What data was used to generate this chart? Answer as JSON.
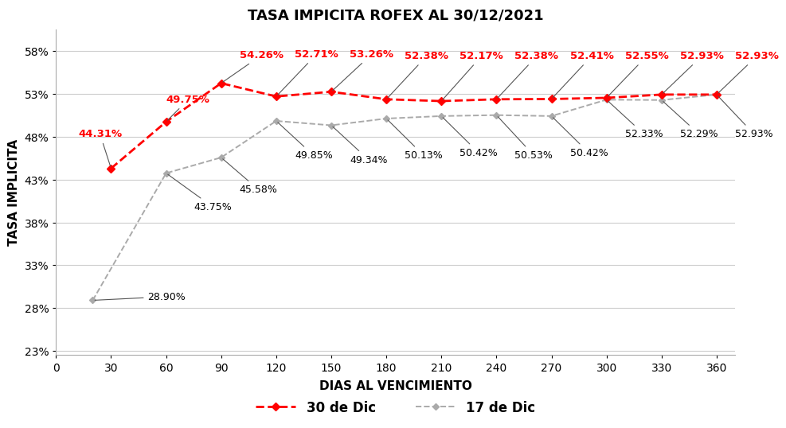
{
  "title": "TASA IMPICITA ROFEX AL 30/12/2021",
  "xlabel": "DIAS AL VENCIMIENTO",
  "ylabel": "TASA IMPLICITA",
  "xlim": [
    0,
    370
  ],
  "ylim": [
    0.225,
    0.605
  ],
  "yticks": [
    0.23,
    0.28,
    0.33,
    0.38,
    0.43,
    0.48,
    0.53,
    0.58
  ],
  "ytick_labels": [
    "23%",
    "28%",
    "33%",
    "38%",
    "43%",
    "48%",
    "53%",
    "58%"
  ],
  "xticks": [
    0,
    30,
    60,
    90,
    120,
    150,
    180,
    210,
    240,
    270,
    300,
    330,
    360
  ],
  "series_30dic": {
    "x": [
      30,
      60,
      90,
      120,
      150,
      180,
      210,
      240,
      270,
      300,
      330,
      360
    ],
    "y": [
      0.4431,
      0.4975,
      0.5426,
      0.5271,
      0.5326,
      0.5238,
      0.5217,
      0.5238,
      0.5241,
      0.5255,
      0.5293,
      0.5293
    ],
    "labels": [
      "44.31%",
      "49.75%",
      "54.26%",
      "52.71%",
      "53.26%",
      "52.38%",
      "52.17%",
      "52.38%",
      "52.41%",
      "52.55%",
      "52.93%",
      "52.93%"
    ],
    "color": "#FF0000",
    "label": "30 de Dic"
  },
  "series_17dic": {
    "x": [
      20,
      60,
      90,
      120,
      150,
      180,
      210,
      240,
      270,
      300,
      330,
      360
    ],
    "y": [
      0.289,
      0.4375,
      0.4558,
      0.4985,
      0.4934,
      0.5013,
      0.5042,
      0.5053,
      0.5042,
      0.5233,
      0.5229,
      0.5293
    ],
    "labels": [
      "28.90%",
      "43.75%",
      "45.58%",
      "49.85%",
      "49.34%",
      "50.13%",
      "50.42%",
      "50.53%",
      "50.42%",
      "52.33%",
      "52.29%",
      "52.93%"
    ],
    "color": "#AAAAAA",
    "label": "17 de Dic"
  },
  "background_color": "#FFFFFF",
  "grid_color": "#CCCCCC",
  "title_fontsize": 13,
  "axis_label_fontsize": 11,
  "tick_fontsize": 10,
  "ann_fontsize_red": 9.5,
  "ann_fontsize_gray": 9
}
